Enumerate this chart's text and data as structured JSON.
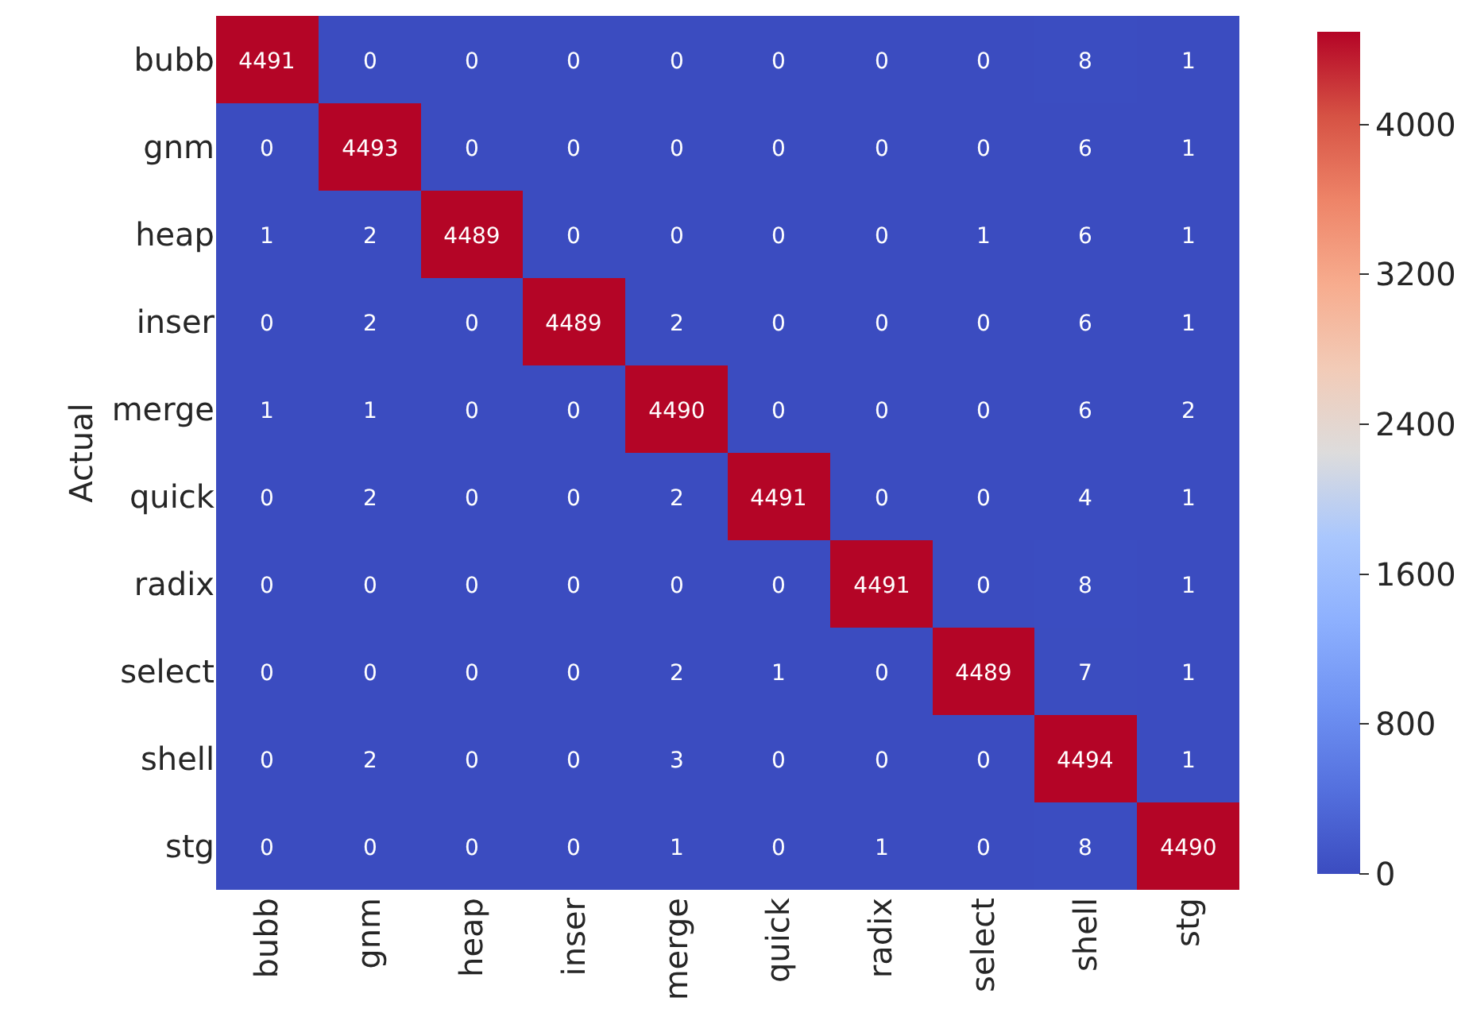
{
  "chart_data": {
    "type": "heatmap",
    "ylabel": "Actual",
    "categories": [
      "bubb",
      "gnm",
      "heap",
      "inser",
      "merge",
      "quick",
      "radix",
      "select",
      "shell",
      "stg"
    ],
    "y_categories": [
      "bubb",
      "gnm",
      "heap",
      "inser",
      "merge",
      "quick",
      "radix",
      "select",
      "shell",
      "stg"
    ],
    "cells": [
      [
        4491,
        0,
        0,
        0,
        0,
        0,
        0,
        0,
        8,
        1
      ],
      [
        0,
        4493,
        0,
        0,
        0,
        0,
        0,
        0,
        6,
        1
      ],
      [
        1,
        2,
        4489,
        0,
        0,
        0,
        0,
        1,
        6,
        1
      ],
      [
        0,
        2,
        0,
        4489,
        2,
        0,
        0,
        0,
        6,
        1
      ],
      [
        1,
        1,
        0,
        0,
        4490,
        0,
        0,
        0,
        6,
        2
      ],
      [
        0,
        2,
        0,
        0,
        2,
        4491,
        0,
        0,
        4,
        1
      ],
      [
        0,
        0,
        0,
        0,
        0,
        0,
        4491,
        0,
        8,
        1
      ],
      [
        0,
        0,
        0,
        0,
        2,
        1,
        0,
        4489,
        7,
        1
      ],
      [
        0,
        2,
        0,
        0,
        3,
        0,
        0,
        0,
        4494,
        1
      ],
      [
        0,
        0,
        0,
        0,
        1,
        0,
        1,
        0,
        8,
        4490
      ]
    ],
    "clim": [
      0,
      4494
    ],
    "cticks": [
      0,
      800,
      1600,
      2400,
      3200,
      4000
    ],
    "data_labels": true
  }
}
